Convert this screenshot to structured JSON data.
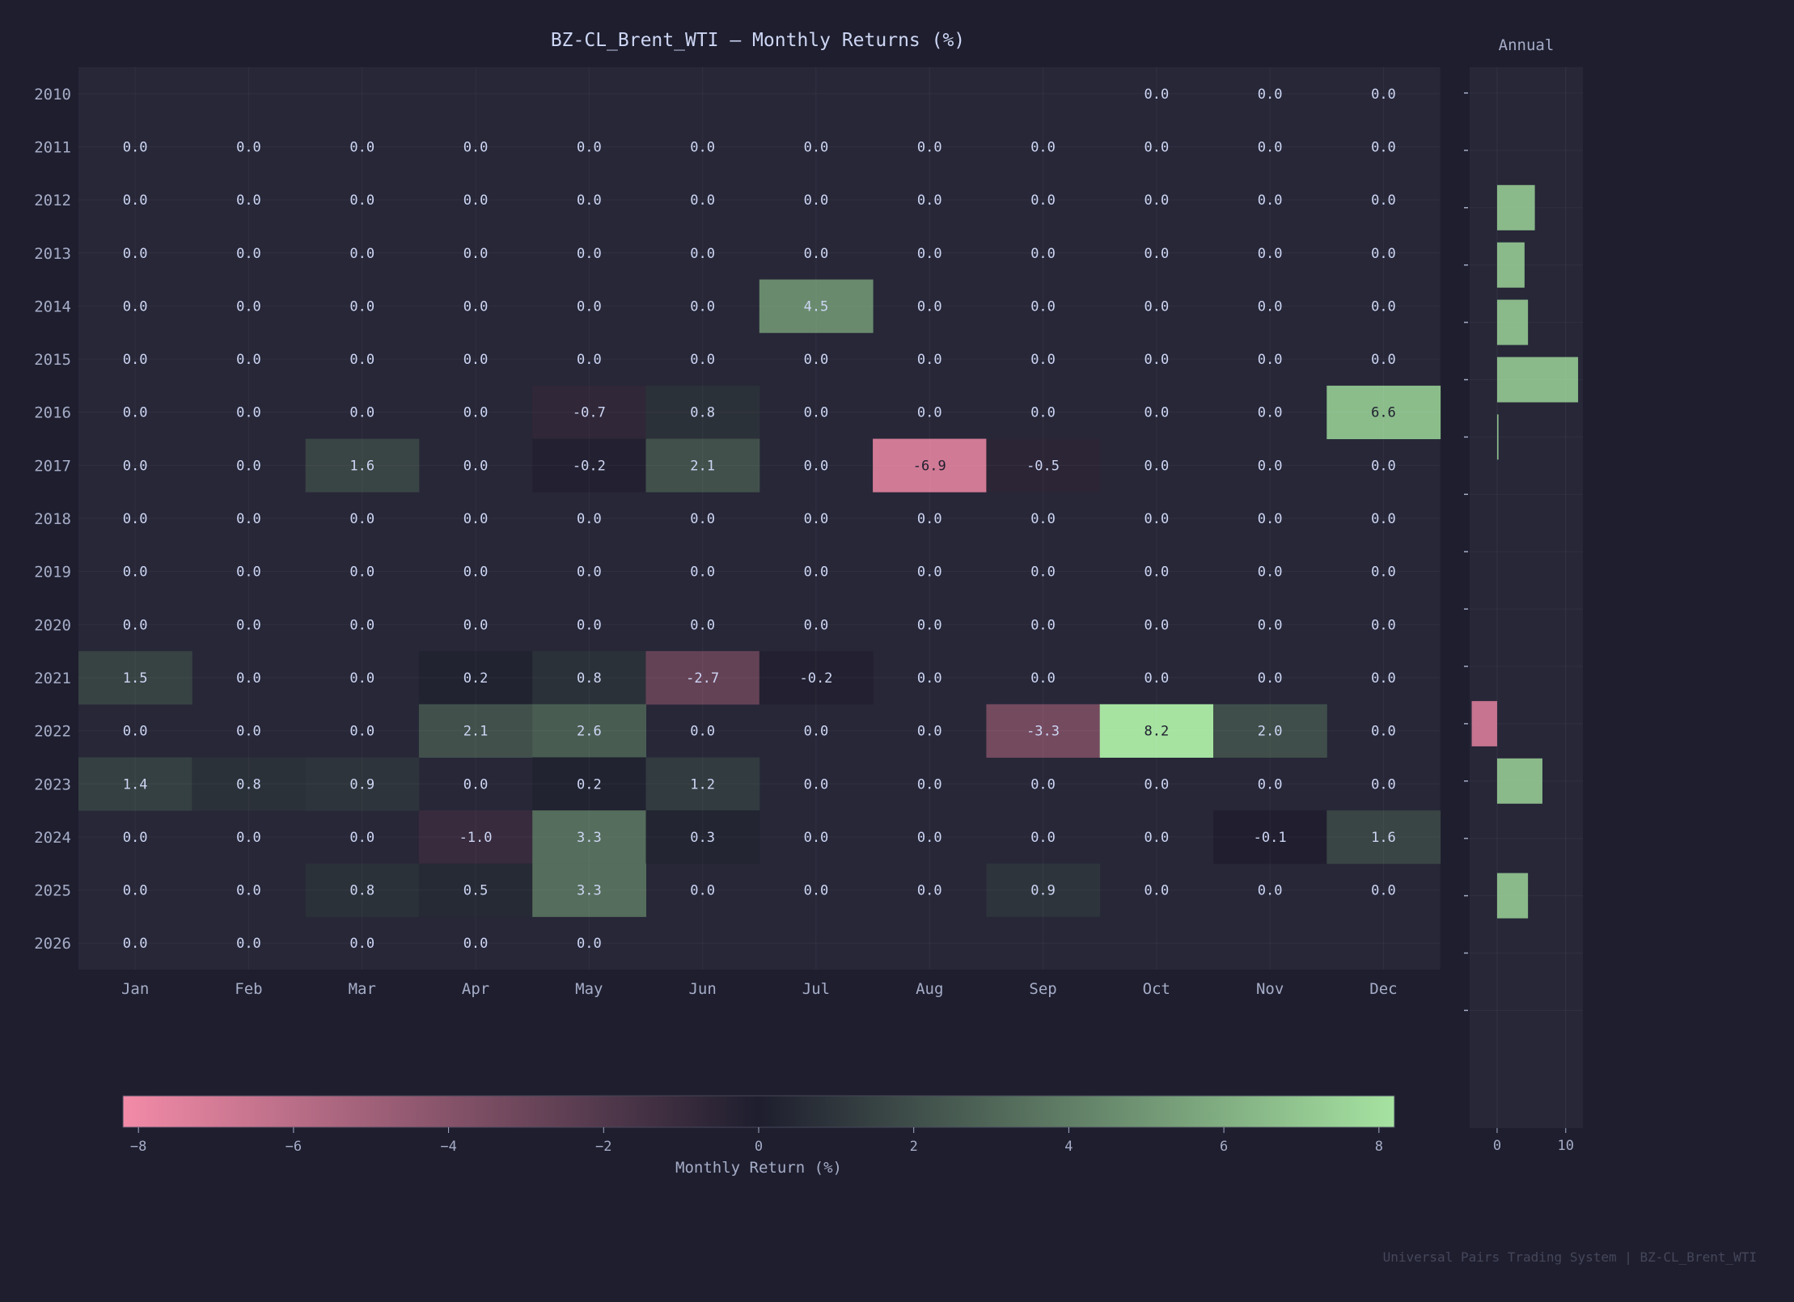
{
  "colors": {
    "background": "#1e1e2e",
    "panel": "#272738",
    "text": "#cdd6f4",
    "muted": "#a6adc8",
    "faint": "#45475a",
    "negative": "#f38ba8",
    "neutral": "#1e1e2e",
    "positive": "#a6e3a1"
  },
  "chart_data": [
    {
      "type": "heatmap",
      "title": "BZ-CL_Brent_WTI  —  Monthly Returns (%)",
      "x_categories": [
        "Jan",
        "Feb",
        "Mar",
        "Apr",
        "May",
        "Jun",
        "Jul",
        "Aug",
        "Sep",
        "Oct",
        "Nov",
        "Dec"
      ],
      "y_categories": [
        "2010",
        "2011",
        "2012",
        "2013",
        "2014",
        "2015",
        "2016",
        "2017",
        "2018",
        "2019",
        "2020",
        "2021",
        "2022",
        "2023",
        "2024",
        "2025",
        "2026"
      ],
      "values": [
        [
          null,
          null,
          null,
          null,
          null,
          null,
          null,
          null,
          null,
          0.0,
          0.0,
          0.0
        ],
        [
          0.0,
          0.0,
          0.0,
          0.0,
          0.0,
          0.0,
          0.0,
          0.0,
          0.0,
          0.0,
          0.0,
          0.0
        ],
        [
          0.0,
          0.0,
          0.0,
          0.0,
          0.0,
          0.0,
          0.0,
          0.0,
          0.0,
          0.0,
          0.0,
          0.0
        ],
        [
          0.0,
          0.0,
          0.0,
          0.0,
          0.0,
          0.0,
          0.0,
          0.0,
          0.0,
          0.0,
          0.0,
          0.0
        ],
        [
          0.0,
          0.0,
          0.0,
          0.0,
          0.0,
          0.0,
          4.5,
          0.0,
          0.0,
          0.0,
          0.0,
          0.0
        ],
        [
          0.0,
          0.0,
          0.0,
          0.0,
          0.0,
          0.0,
          0.0,
          0.0,
          0.0,
          0.0,
          0.0,
          0.0
        ],
        [
          0.0,
          0.0,
          0.0,
          0.0,
          -0.7,
          0.8,
          0.0,
          0.0,
          0.0,
          0.0,
          0.0,
          6.6
        ],
        [
          0.0,
          0.0,
          1.6,
          0.0,
          -0.2,
          2.1,
          0.0,
          -6.9,
          -0.5,
          0.0,
          0.0,
          0.0
        ],
        [
          0.0,
          0.0,
          0.0,
          0.0,
          0.0,
          0.0,
          0.0,
          0.0,
          0.0,
          0.0,
          0.0,
          0.0
        ],
        [
          0.0,
          0.0,
          0.0,
          0.0,
          0.0,
          0.0,
          0.0,
          0.0,
          0.0,
          0.0,
          0.0,
          0.0
        ],
        [
          0.0,
          0.0,
          0.0,
          0.0,
          0.0,
          0.0,
          0.0,
          0.0,
          0.0,
          0.0,
          0.0,
          0.0
        ],
        [
          1.5,
          0.0,
          0.0,
          0.2,
          0.8,
          -2.7,
          -0.2,
          0.0,
          0.0,
          0.0,
          0.0,
          0.0
        ],
        [
          0.0,
          0.0,
          0.0,
          2.1,
          2.6,
          0.0,
          0.0,
          0.0,
          -3.3,
          8.2,
          2.0,
          0.0
        ],
        [
          1.4,
          0.8,
          0.9,
          0.0,
          0.2,
          1.2,
          0.0,
          0.0,
          0.0,
          0.0,
          0.0,
          0.0
        ],
        [
          0.0,
          0.0,
          0.0,
          -1.0,
          3.3,
          0.3,
          0.0,
          0.0,
          0.0,
          0.0,
          -0.1,
          1.6
        ],
        [
          0.0,
          0.0,
          0.8,
          0.5,
          3.3,
          0.0,
          0.0,
          0.0,
          0.9,
          0.0,
          0.0,
          0.0
        ],
        [
          0.0,
          0.0,
          0.0,
          0.0,
          0.0,
          null,
          null,
          null,
          null,
          null,
          null,
          null
        ]
      ],
      "color_range": [
        -8.2,
        8.2
      ],
      "colorbar": {
        "label": "Monthly Return (%)",
        "ticks": [
          "−8",
          "−6",
          "−4",
          "−2",
          "0",
          "2",
          "4",
          "6",
          "8"
        ],
        "tick_values": [
          -8,
          -6,
          -4,
          -2,
          0,
          2,
          4,
          6,
          8
        ]
      },
      "grid": true
    },
    {
      "type": "bar",
      "orientation": "horizontal",
      "title": "Annual",
      "categories": [
        "2010",
        "2011",
        "2012",
        "2013",
        "2014",
        "2015",
        "2016",
        "2017",
        "2018",
        "2019",
        "2020",
        "2021",
        "2022",
        "2023",
        "2024",
        "2025",
        "2026"
      ],
      "values": [
        0.0,
        0.0,
        5.5,
        4.0,
        4.5,
        11.8,
        0.2,
        0.0,
        0.0,
        0.0,
        0.0,
        -3.7,
        6.6,
        0.0,
        4.5,
        0.0,
        0.0
      ],
      "xlim": [
        -4,
        12.5
      ],
      "x_ticks": [
        "0",
        "10"
      ],
      "x_tick_values": [
        0,
        10
      ],
      "grid": true
    }
  ],
  "footer": "Universal Pairs Trading System  |  BZ-CL_Brent_WTI"
}
